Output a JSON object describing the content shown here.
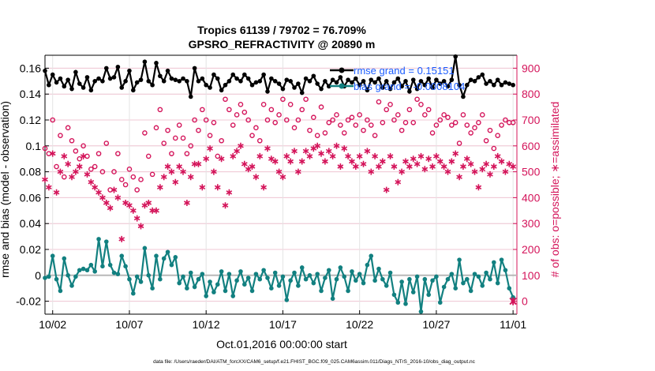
{
  "chart_data": {
    "type": "line",
    "title": "Tropics 61139 / 79702 = 76.709%",
    "subtitle": "GPSRO_REFRACTIVITY @ 20890 m",
    "xlabel": "Oct.01,2016 00:00:00 start",
    "ylabel_left": "rmse and bias (model - observation)",
    "ylabel_right": "# of obs: o=possible; ∗=assimilated",
    "x_tick_labels": [
      "10/02",
      "10/07",
      "10/12",
      "10/17",
      "10/22",
      "10/27",
      "11/01"
    ],
    "x_ticks": [
      1,
      6,
      11,
      16,
      21,
      26,
      31
    ],
    "xlim": [
      0.5,
      31.25
    ],
    "ylim_left": [
      -0.03,
      0.17
    ],
    "y_ticks_left": [
      -0.02,
      0,
      0.02,
      0.04,
      0.06,
      0.08,
      0.1,
      0.12,
      0.14,
      0.16
    ],
    "y_tick_labels_left": [
      "-0.02",
      "0",
      "0.02",
      "0.04",
      "0.06",
      "0.08",
      "0.1",
      "0.12",
      "0.14",
      "0.16"
    ],
    "ylim_right": [
      -50,
      950
    ],
    "y_ticks_right": [
      0,
      100,
      200,
      300,
      400,
      500,
      600,
      700,
      800,
      900
    ],
    "y_tick_labels_right": [
      "0",
      "100",
      "200",
      "300",
      "400",
      "500",
      "600",
      "700",
      "800",
      "900"
    ],
    "grid": true,
    "legend_position": "top-right",
    "legend": [
      {
        "label": "rmse grand = 0.15151"
      },
      {
        "label": "bias grand = -0.0008104"
      }
    ],
    "footer": "data file: /Users/raeder/DAI/ATM_forcXX/CAM6_setup/f.e21.FHIST_BGC.f09_025.CAM6assim.011/Diags_NTrS_2016-10/obs_diag_output.nc",
    "series": [
      {
        "name": "rmse",
        "axis": "left",
        "x": [
          0.5,
          0.75,
          1.0,
          1.25,
          1.5,
          1.75,
          2.0,
          2.25,
          2.5,
          2.75,
          3.0,
          3.25,
          3.5,
          3.75,
          4.0,
          4.25,
          4.5,
          4.75,
          5.0,
          5.25,
          5.5,
          5.75,
          6.0,
          6.25,
          6.5,
          6.75,
          7.0,
          7.25,
          7.5,
          7.75,
          8.0,
          8.25,
          8.5,
          8.75,
          9.0,
          9.25,
          9.5,
          9.75,
          10.0,
          10.25,
          10.5,
          10.75,
          11.0,
          11.25,
          11.5,
          11.75,
          12.0,
          12.25,
          12.5,
          12.75,
          13.0,
          13.25,
          13.5,
          13.75,
          14.0,
          14.25,
          14.5,
          14.75,
          15.0,
          15.25,
          15.5,
          15.75,
          16.0,
          16.25,
          16.5,
          16.75,
          17.0,
          17.25,
          17.5,
          17.75,
          18.0,
          18.25,
          18.5,
          18.75,
          19.0,
          19.25,
          19.5,
          19.75,
          20.0,
          20.25,
          20.5,
          20.75,
          21.0,
          21.25,
          21.5,
          21.75,
          22.0,
          22.25,
          22.5,
          22.75,
          23.0,
          23.25,
          23.5,
          23.75,
          24.0,
          24.25,
          24.5,
          24.75,
          25.0,
          25.25,
          25.5,
          25.75,
          26.0,
          26.25,
          26.5,
          26.75,
          27.0,
          27.25,
          27.5,
          27.75,
          28.0,
          28.25,
          28.5,
          28.75,
          29.0,
          29.25,
          29.5,
          29.75,
          30.0,
          30.25,
          30.5,
          30.75,
          31.0
        ],
        "values": [
          0.158,
          0.147,
          0.155,
          0.149,
          0.152,
          0.146,
          0.151,
          0.144,
          0.157,
          0.148,
          0.145,
          0.153,
          0.143,
          0.15,
          0.152,
          0.15,
          0.16,
          0.152,
          0.153,
          0.161,
          0.145,
          0.15,
          0.158,
          0.143,
          0.149,
          0.151,
          0.165,
          0.15,
          0.147,
          0.164,
          0.154,
          0.15,
          0.158,
          0.152,
          0.151,
          0.15,
          0.152,
          0.15,
          0.138,
          0.16,
          0.15,
          0.152,
          0.147,
          0.145,
          0.155,
          0.152,
          0.143,
          0.147,
          0.15,
          0.155,
          0.152,
          0.15,
          0.155,
          0.152,
          0.147,
          0.149,
          0.15,
          0.155,
          0.142,
          0.152,
          0.15,
          0.148,
          0.144,
          0.151,
          0.15,
          0.145,
          0.148,
          0.141,
          0.152,
          0.15,
          0.154,
          0.148,
          0.144,
          0.15,
          0.146,
          0.151,
          0.149,
          0.153,
          0.146,
          0.151,
          0.149,
          0.152,
          0.147,
          0.15,
          0.143,
          0.151,
          0.149,
          0.152,
          0.145,
          0.15,
          0.144,
          0.149,
          0.152,
          0.146,
          0.15,
          0.142,
          0.151,
          0.144,
          0.15,
          0.147,
          0.152,
          0.145,
          0.151,
          0.148,
          0.15,
          0.146,
          0.151,
          0.169,
          0.147,
          0.138,
          0.147,
          0.151,
          0.15,
          0.153,
          0.155,
          0.148,
          0.15,
          0.147,
          0.151,
          0.147,
          0.149,
          0.148,
          0.147
        ]
      },
      {
        "name": "bias",
        "axis": "left",
        "x": [
          0.5,
          0.75,
          1.0,
          1.25,
          1.5,
          1.75,
          2.0,
          2.25,
          2.5,
          2.75,
          3.0,
          3.25,
          3.5,
          3.75,
          4.0,
          4.25,
          4.5,
          4.75,
          5.0,
          5.25,
          5.5,
          5.75,
          6.0,
          6.25,
          6.5,
          6.75,
          7.0,
          7.25,
          7.5,
          7.75,
          8.0,
          8.25,
          8.5,
          8.75,
          9.0,
          9.25,
          9.5,
          9.75,
          10.0,
          10.25,
          10.5,
          10.75,
          11.0,
          11.25,
          11.5,
          11.75,
          12.0,
          12.25,
          12.5,
          12.75,
          13.0,
          13.25,
          13.5,
          13.75,
          14.0,
          14.25,
          14.5,
          14.75,
          15.0,
          15.25,
          15.5,
          15.75,
          16.0,
          16.25,
          16.5,
          16.75,
          17.0,
          17.25,
          17.5,
          17.75,
          18.0,
          18.25,
          18.5,
          18.75,
          19.0,
          19.25,
          19.5,
          19.75,
          20.0,
          20.25,
          20.5,
          20.75,
          21.0,
          21.25,
          21.5,
          21.75,
          22.0,
          22.25,
          22.5,
          22.75,
          23.0,
          23.25,
          23.5,
          23.75,
          24.0,
          24.25,
          24.5,
          24.75,
          25.0,
          25.25,
          25.5,
          25.75,
          26.0,
          26.25,
          26.5,
          26.75,
          27.0,
          27.25,
          27.5,
          27.75,
          28.0,
          28.25,
          28.5,
          28.75,
          29.0,
          29.25,
          29.5,
          29.75,
          30.0,
          30.25,
          30.5,
          30.75,
          31.0
        ],
        "values": [
          -0.002,
          -0.001,
          0.015,
          -0.003,
          -0.012,
          0.013,
          0.0,
          -0.008,
          -0.001,
          0.004,
          0.005,
          0.004,
          0.008,
          0.003,
          0.028,
          0.007,
          0.026,
          0.008,
          0.002,
          0.001,
          0.015,
          0.007,
          -0.003,
          -0.014,
          -0.001,
          -0.005,
          0.021,
          0.0,
          -0.01,
          0.015,
          -0.003,
          0.013,
          0.018,
          0.008,
          0.014,
          -0.006,
          -0.001,
          -0.01,
          0.002,
          -0.009,
          -0.003,
          0.001,
          -0.016,
          -0.005,
          -0.013,
          -0.007,
          0.003,
          -0.012,
          0.001,
          -0.016,
          -0.004,
          0.003,
          -0.007,
          -0.002,
          -0.012,
          0.001,
          -0.003,
          0.004,
          -0.002,
          -0.01,
          0.002,
          -0.008,
          -0.001,
          -0.019,
          -0.004,
          0.002,
          -0.008,
          0.006,
          -0.003,
          0.0,
          -0.006,
          0.001,
          -0.012,
          -0.002,
          0.004,
          -0.018,
          -0.003,
          0.006,
          -0.001,
          -0.012,
          0.003,
          -0.004,
          0.001,
          -0.006,
          0.008,
          0.015,
          -0.004,
          0.005,
          -0.003,
          -0.008,
          0.002,
          -0.015,
          -0.021,
          -0.005,
          -0.022,
          -0.003,
          -0.013,
          -0.001,
          -0.028,
          -0.003,
          -0.015,
          -0.004,
          -0.001,
          -0.021,
          -0.009,
          -0.003,
          0.001,
          -0.01,
          0.012,
          -0.006,
          -0.003,
          -0.012,
          0.001,
          -0.001,
          -0.008,
          0.002,
          -0.003,
          0.01,
          -0.006,
          0.012,
          0.004,
          -0.01,
          -0.017
        ]
      },
      {
        "name": "obs possible",
        "axis": "right",
        "marker": "o",
        "x": [
          0.5,
          0.75,
          1.0,
          1.25,
          1.5,
          1.75,
          2.0,
          2.25,
          2.5,
          2.75,
          3.0,
          3.25,
          3.5,
          3.75,
          4.0,
          4.25,
          4.5,
          4.75,
          5.0,
          5.25,
          5.5,
          5.75,
          6.0,
          6.25,
          6.5,
          6.75,
          7.0,
          7.25,
          7.5,
          7.75,
          8.0,
          8.25,
          8.5,
          8.75,
          9.0,
          9.25,
          9.5,
          9.75,
          10.0,
          10.25,
          10.5,
          10.75,
          11.0,
          11.25,
          11.5,
          11.75,
          12.0,
          12.25,
          12.5,
          12.75,
          13.0,
          13.25,
          13.5,
          13.75,
          14.0,
          14.25,
          14.5,
          14.75,
          15.0,
          15.25,
          15.5,
          15.75,
          16.0,
          16.25,
          16.5,
          16.75,
          17.0,
          17.25,
          17.5,
          17.75,
          18.0,
          18.25,
          18.5,
          18.75,
          19.0,
          19.25,
          19.5,
          19.75,
          20.0,
          20.25,
          20.5,
          20.75,
          21.0,
          21.25,
          21.5,
          21.75,
          22.0,
          22.25,
          22.5,
          22.75,
          23.0,
          23.25,
          23.5,
          23.75,
          24.0,
          24.25,
          24.5,
          24.75,
          25.0,
          25.25,
          25.5,
          25.75,
          26.0,
          26.25,
          26.5,
          26.75,
          27.0,
          27.25,
          27.5,
          27.75,
          28.0,
          28.25,
          28.5,
          28.75,
          29.0,
          29.25,
          29.5,
          29.75,
          30.0,
          30.25,
          30.5,
          30.75,
          31.0
        ],
        "values": [
          590,
          570,
          700,
          520,
          640,
          480,
          670,
          620,
          580,
          550,
          600,
          560,
          510,
          520,
          570,
          500,
          610,
          430,
          500,
          570,
          470,
          450,
          510,
          480,
          430,
          470,
          650,
          560,
          490,
          670,
          740,
          610,
          660,
          570,
          630,
          680,
          630,
          570,
          600,
          700,
          660,
          740,
          700,
          640,
          690,
          560,
          620,
          780,
          740,
          680,
          720,
          760,
          730,
          700,
          640,
          670,
          620,
          760,
          700,
          740,
          690,
          720,
          780,
          700,
          760,
          670,
          700,
          740,
          780,
          660,
          710,
          640,
          750,
          650,
          690,
          700,
          720,
          680,
          650,
          700,
          710,
          680,
          720,
          660,
          700,
          680,
          640,
          770,
          690,
          740,
          760,
          700,
          720,
          660,
          690,
          740,
          690,
          780,
          760,
          720,
          740,
          650,
          680,
          700,
          720,
          710,
          680,
          690,
          610,
          720,
          680,
          650,
          670,
          690,
          720,
          620,
          660,
          590,
          640,
          680,
          700,
          690,
          690
        ]
      },
      {
        "name": "obs assimilated",
        "axis": "right",
        "marker": "*",
        "x": [
          0.5,
          0.75,
          1.0,
          1.25,
          1.5,
          1.75,
          2.0,
          2.25,
          2.5,
          2.75,
          3.0,
          3.25,
          3.5,
          3.75,
          4.0,
          4.25,
          4.5,
          4.75,
          5.0,
          5.25,
          5.5,
          5.75,
          6.0,
          6.25,
          6.5,
          6.75,
          7.0,
          7.25,
          7.5,
          7.75,
          8.0,
          8.25,
          8.5,
          8.75,
          9.0,
          9.25,
          9.5,
          9.75,
          10.0,
          10.25,
          10.5,
          10.75,
          11.0,
          11.25,
          11.5,
          11.75,
          12.0,
          12.25,
          12.5,
          12.75,
          13.0,
          13.25,
          13.5,
          13.75,
          14.0,
          14.25,
          14.5,
          14.75,
          15.0,
          15.25,
          15.5,
          15.75,
          16.0,
          16.25,
          16.5,
          16.75,
          17.0,
          17.25,
          17.5,
          17.75,
          18.0,
          18.25,
          18.5,
          18.75,
          19.0,
          19.25,
          19.5,
          19.75,
          20.0,
          20.25,
          20.5,
          20.75,
          21.0,
          21.25,
          21.5,
          21.75,
          22.0,
          22.25,
          22.5,
          22.75,
          23.0,
          23.25,
          23.5,
          23.75,
          24.0,
          24.25,
          24.5,
          24.75,
          25.0,
          25.25,
          25.5,
          25.75,
          26.0,
          26.25,
          26.5,
          26.75,
          27.0,
          27.25,
          27.5,
          27.75,
          28.0,
          28.25,
          28.5,
          28.75,
          29.0,
          29.25,
          29.5,
          29.75,
          30.0,
          30.25,
          30.5,
          30.75,
          31.0
        ],
        "values": [
          470,
          440,
          570,
          420,
          500,
          560,
          530,
          480,
          500,
          520,
          560,
          490,
          460,
          440,
          420,
          400,
          380,
          360,
          430,
          400,
          240,
          380,
          370,
          350,
          320,
          290,
          370,
          380,
          350,
          350,
          440,
          480,
          520,
          500,
          460,
          520,
          500,
          380,
          480,
          530,
          530,
          440,
          550,
          590,
          500,
          440,
          550,
          370,
          420,
          560,
          580,
          600,
          530,
          510,
          520,
          480,
          560,
          440,
          590,
          550,
          540,
          500,
          480,
          560,
          540,
          580,
          500,
          540,
          580,
          560,
          590,
          600,
          570,
          540,
          580,
          560,
          600,
          520,
          590,
          560,
          540,
          520,
          560,
          530,
          580,
          500,
          560,
          520,
          540,
          430,
          560,
          520,
          460,
          500,
          540,
          520,
          550,
          530,
          560,
          510,
          550,
          520,
          560,
          540,
          520,
          500,
          540,
          570,
          480,
          520,
          550,
          530,
          500,
          440,
          510,
          530,
          490,
          520,
          560,
          540,
          500,
          530,
          520
        ]
      }
    ],
    "end_marker": {
      "x": 31.0,
      "value": 0,
      "axis": "right"
    }
  }
}
